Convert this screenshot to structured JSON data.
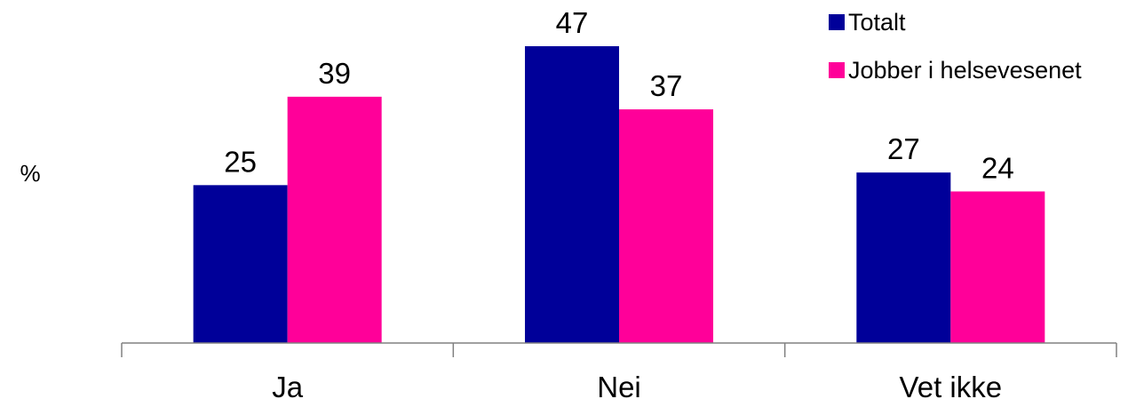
{
  "chart_data": {
    "type": "bar",
    "categories": [
      "Ja",
      "Nei",
      "Vet ikke"
    ],
    "series": [
      {
        "name": "Totalt",
        "values": [
          25,
          47,
          27
        ],
        "color": "#000099"
      },
      {
        "name": "Jobber i helsevesenet",
        "values": [
          39,
          37,
          24
        ],
        "color": "#FF0099"
      }
    ],
    "title": "",
    "xlabel": "",
    "ylabel": "%",
    "ylim": [
      0,
      51
    ],
    "grid": false,
    "legend": "top-right",
    "data_labels": true,
    "colors": {
      "axis": "#808080",
      "text": "#000000",
      "background": "#ffffff"
    }
  }
}
